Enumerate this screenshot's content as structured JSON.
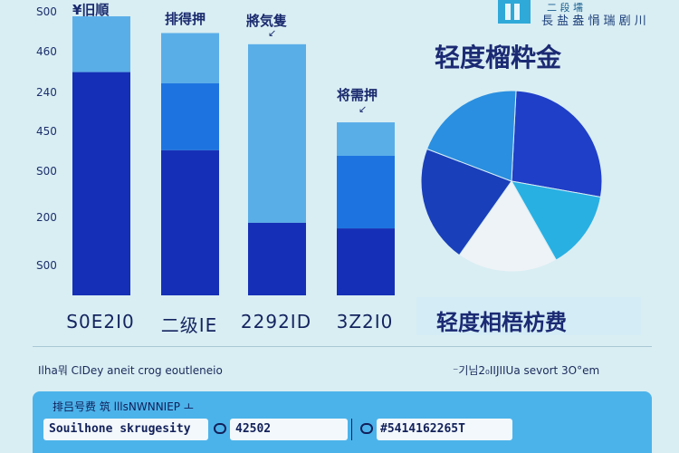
{
  "chart_data": [
    {
      "type": "bar",
      "ylim": [
        0,
        500
      ],
      "yticks": [
        "S00",
        "460",
        "240",
        "450",
        "S00",
        "200",
        "S00"
      ],
      "categories": [
        "S0E2I0",
        "二级IE",
        "2292ID",
        "3Z2I0"
      ],
      "bar_labels": [
        "¥旧順",
        "排得押",
        "將気隻",
        "将需押"
      ],
      "segments": [
        {
          "stack": [
            500,
            400
          ]
        },
        {
          "stack": [
            470,
            380,
            260
          ]
        },
        {
          "stack": [
            450,
            130
          ]
        },
        {
          "stack": [
            310,
            250,
            120
          ]
        }
      ],
      "colors": {
        "light": "#5aaee8",
        "mid": "#1d74e0",
        "dark": "#1530b6"
      }
    },
    {
      "type": "pie",
      "title": "轻度榴粋金",
      "caption": "轻度相梧枋费",
      "values": [
        27,
        14,
        18,
        21,
        20
      ],
      "colors": [
        "#1f3fc8",
        "#28b0e3",
        "#eef3f7",
        "#1a3fba",
        "#2a8fe0"
      ]
    }
  ],
  "logo": {
    "line1": "二 段 壖",
    "line2": "長 盐 盎 悁 瑞 剧 川"
  },
  "footnote_left": "Ilha뭐 CIDey aneit crog eoutleneio",
  "footnote_right": "⁻기님2₀IIJIIUa sevort 3O°em",
  "panel": {
    "header": "排吕号费    筑 lllsNWNNIEP ㅗ",
    "row1_text": "Souilhone skrugesity",
    "row2_value": "42502",
    "row3_value": "#5414162265T"
  }
}
